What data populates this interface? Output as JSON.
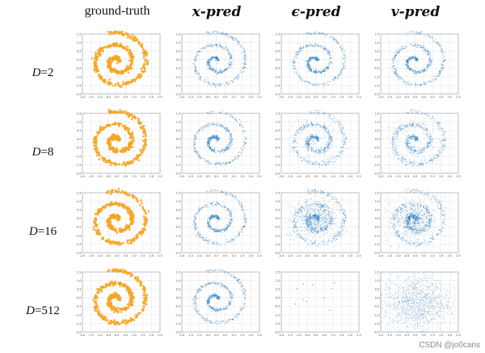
{
  "figure": {
    "columns": [
      "ground-truth",
      "𝒙-pred",
      "ϵ-pred",
      "𝒗-pred"
    ],
    "rows": [
      {
        "prefix": "D",
        "value": "=2"
      },
      {
        "prefix": "D",
        "value": "=8"
      },
      {
        "prefix": "D",
        "value": "=16"
      },
      {
        "prefix": "D",
        "value": "=512"
      }
    ],
    "watermark": "CSDN @jo0cans",
    "colors": {
      "ground_truth": "#f5a623",
      "pred": "#2f7fbf",
      "grid": "#e6e6e6",
      "frame": "#9a9a9a",
      "tick": "#444444"
    }
  },
  "chart_data": {
    "type": "scatter",
    "title": "",
    "xlabel": "",
    "ylabel": "",
    "xlim": [
      -2.0,
      2.5
    ],
    "ylim": [
      -2.0,
      1.5
    ],
    "x_ticks": [
      "-2.0",
      "-1.5",
      "-1.0",
      "-0.5",
      "0.0",
      "0.5",
      "1.0",
      "1.5",
      "2.0",
      "2.5"
    ],
    "y_ticks": [
      "1.5",
      "1.0",
      "0.5",
      "0.0",
      "-0.5",
      "-1.0",
      "-1.5",
      "-2.0"
    ],
    "grid": true,
    "spiral": {
      "center": [
        0.0,
        0.0
      ],
      "turns": 2.2,
      "outer_radius": 1.9,
      "description": "2D Swiss-roll spiral dataset"
    },
    "panels": [
      {
        "row": "D=2",
        "column": "ground-truth",
        "style": "clean"
      },
      {
        "row": "D=2",
        "column": "x-pred",
        "style": "clean"
      },
      {
        "row": "D=2",
        "column": "eps-pred",
        "style": "clean"
      },
      {
        "row": "D=2",
        "column": "v-pred",
        "style": "clean"
      },
      {
        "row": "D=8",
        "column": "ground-truth",
        "style": "clean"
      },
      {
        "row": "D=8",
        "column": "x-pred",
        "style": "clean"
      },
      {
        "row": "D=8",
        "column": "eps-pred",
        "style": "slightly-noisy"
      },
      {
        "row": "D=8",
        "column": "v-pred",
        "style": "slightly-noisy"
      },
      {
        "row": "D=16",
        "column": "ground-truth",
        "style": "clean"
      },
      {
        "row": "D=16",
        "column": "x-pred",
        "style": "clean"
      },
      {
        "row": "D=16",
        "column": "eps-pred",
        "style": "noisy-blob"
      },
      {
        "row": "D=16",
        "column": "v-pred",
        "style": "noisy-blob"
      },
      {
        "row": "D=512",
        "column": "ground-truth",
        "style": "clean"
      },
      {
        "row": "D=512",
        "column": "x-pred",
        "style": "clean"
      },
      {
        "row": "D=512",
        "column": "eps-pred",
        "style": "collapsed-sparse"
      },
      {
        "row": "D=512",
        "column": "v-pred",
        "style": "dense-noise-cloud"
      }
    ]
  }
}
